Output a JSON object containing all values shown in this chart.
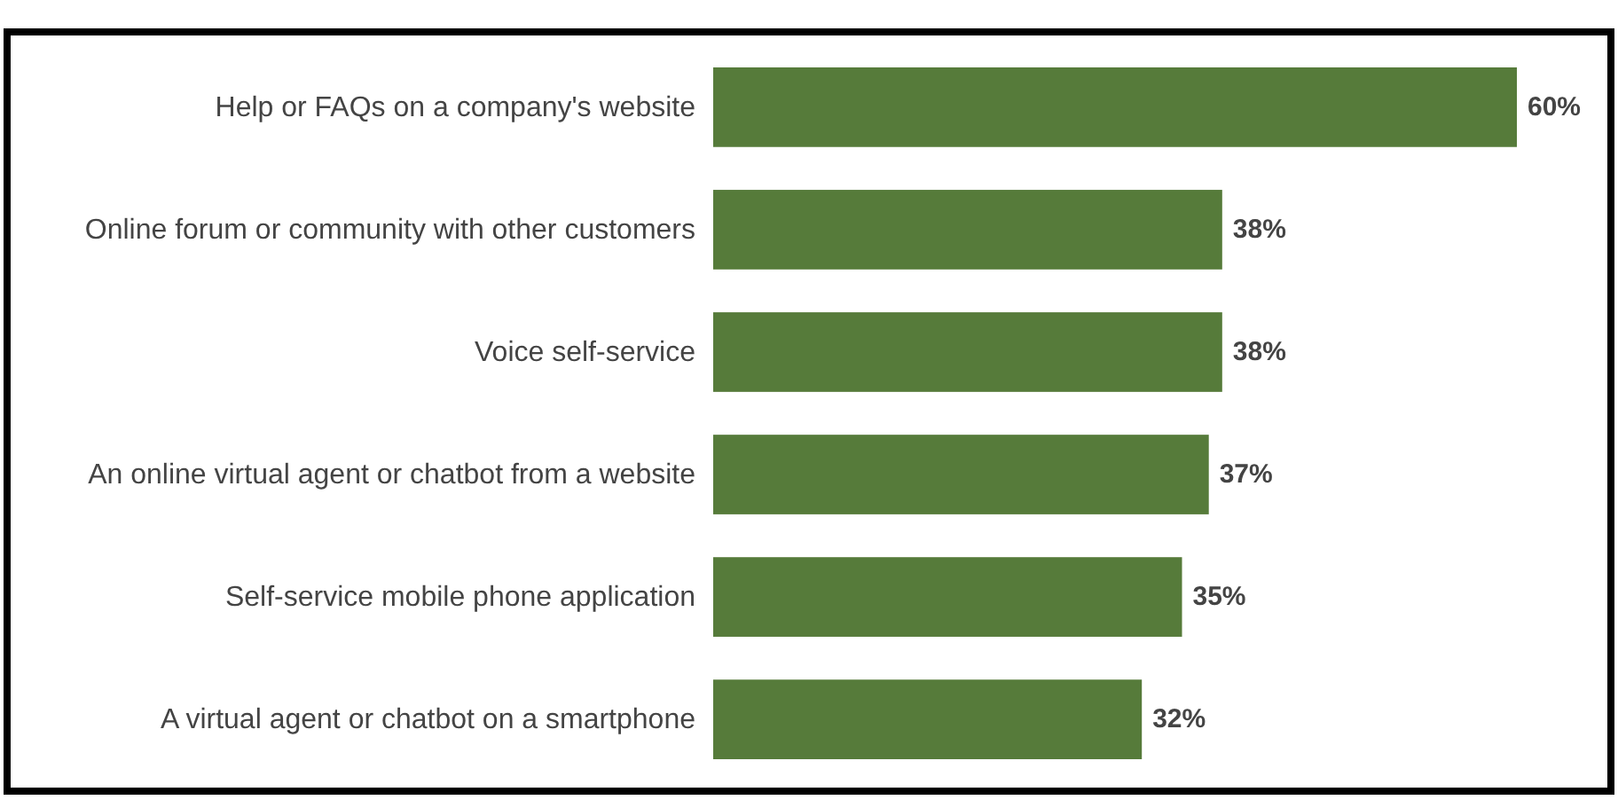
{
  "chart_data": {
    "type": "bar",
    "orientation": "horizontal",
    "categories": [
      "Help or FAQs on a company's website",
      "Online forum or community with other customers",
      "Voice self-service",
      "An online virtual agent or chatbot from a website",
      "Self-service mobile phone application",
      "A virtual agent or chatbot on a smartphone"
    ],
    "values": [
      60,
      38,
      38,
      37,
      35,
      32
    ],
    "color": "#567b3a",
    "data_labels": true,
    "value_labels": [
      "60%",
      "38%",
      "38%",
      "37%",
      "35%",
      "32%"
    ]
  }
}
